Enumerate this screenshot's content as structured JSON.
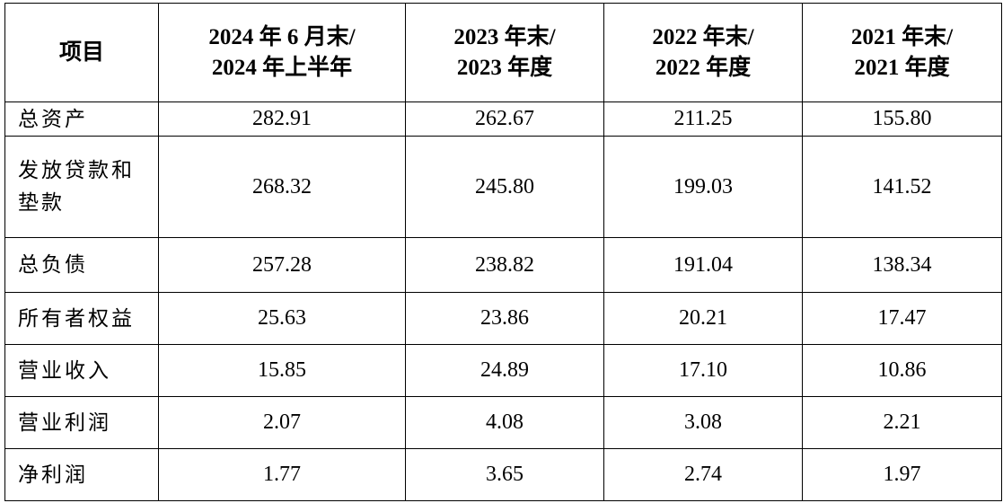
{
  "table": {
    "headers": [
      {
        "lines": [
          "项目"
        ]
      },
      {
        "lines": [
          "2024 年 6 月末/",
          "2024 年上半年"
        ]
      },
      {
        "lines": [
          "2023 年末/",
          "2023 年度"
        ]
      },
      {
        "lines": [
          "2022 年末/",
          "2022 年度"
        ]
      },
      {
        "lines": [
          "2021 年末/",
          "2021 年度"
        ]
      }
    ],
    "rows": [
      {
        "label": [
          "总资产"
        ],
        "values": [
          "282.91",
          "262.67",
          "211.25",
          "155.80"
        ]
      },
      {
        "label": [
          "发放贷款和",
          "垫款"
        ],
        "values": [
          "268.32",
          "245.80",
          "199.03",
          "141.52"
        ]
      },
      {
        "label": [
          "总负债"
        ],
        "values": [
          "257.28",
          "238.82",
          "191.04",
          "138.34"
        ]
      },
      {
        "label": [
          "所有者权益"
        ],
        "values": [
          "25.63",
          "23.86",
          "20.21",
          "17.47"
        ]
      },
      {
        "label": [
          "营业收入"
        ],
        "values": [
          "15.85",
          "24.89",
          "17.10",
          "10.86"
        ]
      },
      {
        "label": [
          "营业利润"
        ],
        "values": [
          "2.07",
          "4.08",
          "3.08",
          "2.21"
        ]
      },
      {
        "label": [
          "净利润"
        ],
        "values": [
          "1.77",
          "3.65",
          "2.74",
          "1.97"
        ]
      }
    ]
  }
}
